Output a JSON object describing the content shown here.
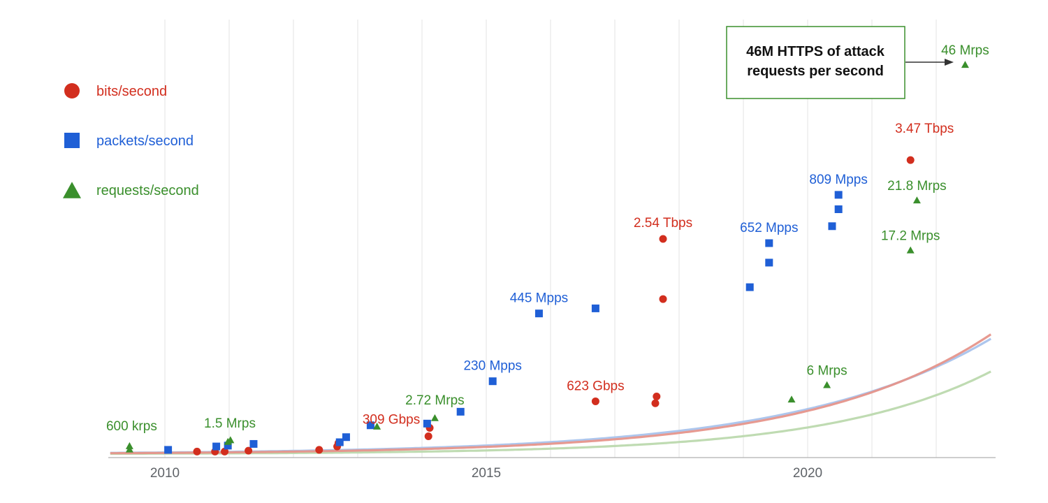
{
  "chart_data": {
    "type": "scatter",
    "title": "",
    "xlabel": "",
    "ylabel": "",
    "xlim": [
      2009.15,
      2022.85
    ],
    "ylim": [
      0,
      47
    ],
    "x_ticks": [
      2010,
      2015,
      2020
    ],
    "grid": {
      "vertical": true,
      "horizontal": false,
      "step_years": 1
    },
    "legend": {
      "position": "top-left",
      "entries": [
        {
          "name": "bits/second",
          "marker": "circle",
          "color": "#d22e1e"
        },
        {
          "name": "packets/second",
          "marker": "square",
          "color": "#1f5fd6"
        },
        {
          "name": "requests/second",
          "marker": "triangle",
          "color": "#3a8f2c"
        }
      ]
    },
    "series": [
      {
        "name": "bits/second",
        "marker": "circle",
        "color": "#d22e1e",
        "trend_color": "#e6958b",
        "trend": {
          "a": 0.1,
          "b": 0.3575
        },
        "points": [
          {
            "x": 2010.5,
            "y": 0.3
          },
          {
            "x": 2010.78,
            "y": 0.3
          },
          {
            "x": 2010.93,
            "y": 0.3
          },
          {
            "x": 2011.3,
            "y": 0.4
          },
          {
            "x": 2012.4,
            "y": 0.5
          },
          {
            "x": 2012.68,
            "y": 0.9
          },
          {
            "x": 2012.7,
            "y": 1.3
          },
          {
            "x": 2014.1,
            "y": 2.1
          },
          {
            "x": 2014.12,
            "y": 3.09
          },
          {
            "x": 2016.7,
            "y": 6.23
          },
          {
            "x": 2017.63,
            "y": 6.0
          },
          {
            "x": 2017.65,
            "y": 6.8
          },
          {
            "x": 2017.75,
            "y": 18.3
          },
          {
            "x": 2017.75,
            "y": 25.4
          },
          {
            "x": 2021.6,
            "y": 34.7
          }
        ]
      },
      {
        "name": "packets/second",
        "marker": "square",
        "color": "#1f5fd6",
        "trend_color": "#a9c3ec",
        "trend": {
          "a": 0.14,
          "b": 0.3305
        },
        "points": [
          {
            "x": 2010.05,
            "y": 0.5
          },
          {
            "x": 2010.8,
            "y": 0.9
          },
          {
            "x": 2010.98,
            "y": 1.0
          },
          {
            "x": 2011.38,
            "y": 1.2
          },
          {
            "x": 2012.72,
            "y": 1.4
          },
          {
            "x": 2012.82,
            "y": 2.0
          },
          {
            "x": 2013.2,
            "y": 3.4
          },
          {
            "x": 2014.08,
            "y": 3.6
          },
          {
            "x": 2014.6,
            "y": 5.0
          },
          {
            "x": 2015.1,
            "y": 8.6
          },
          {
            "x": 2015.82,
            "y": 16.6
          },
          {
            "x": 2016.7,
            "y": 17.2
          },
          {
            "x": 2019.1,
            "y": 19.7
          },
          {
            "x": 2019.4,
            "y": 22.6
          },
          {
            "x": 2019.4,
            "y": 24.9
          },
          {
            "x": 2020.38,
            "y": 26.9
          },
          {
            "x": 2020.48,
            "y": 28.9
          },
          {
            "x": 2020.48,
            "y": 30.6
          }
        ]
      },
      {
        "name": "requests/second",
        "marker": "triangle",
        "color": "#3a8f2c",
        "trend_color": "#bcd9ae",
        "trend": {
          "a": 0.04,
          "b": 0.3968
        },
        "points": [
          {
            "x": 2009.45,
            "y": 0.6
          },
          {
            "x": 2009.45,
            "y": 1.0
          },
          {
            "x": 2010.98,
            "y": 1.5
          },
          {
            "x": 2011.02,
            "y": 1.7
          },
          {
            "x": 2013.3,
            "y": 3.3
          },
          {
            "x": 2014.2,
            "y": 4.3
          },
          {
            "x": 2019.75,
            "y": 6.5
          },
          {
            "x": 2020.3,
            "y": 8.2
          },
          {
            "x": 2021.6,
            "y": 24.1
          },
          {
            "x": 2021.7,
            "y": 30.0
          },
          {
            "x": 2022.45,
            "y": 46.0
          }
        ]
      }
    ],
    "annotations": [
      {
        "text": "600 krps",
        "series": "requests/second",
        "x": 2009.45,
        "y": 1.0
      },
      {
        "text": "1.5 Mrps",
        "series": "requests/second",
        "x": 2011.0,
        "y": 1.5
      },
      {
        "text": "309 Gbps",
        "series": "bits/second",
        "x": 2014.12,
        "y": 3.09
      },
      {
        "text": "2.72 Mrps",
        "series": "requests/second",
        "x": 2014.2,
        "y": 4.3
      },
      {
        "text": "230 Mpps",
        "series": "packets/second",
        "x": 2015.1,
        "y": 8.6
      },
      {
        "text": "445 Mpps",
        "series": "packets/second",
        "x": 2015.82,
        "y": 16.6
      },
      {
        "text": "623 Gbps",
        "series": "bits/second",
        "x": 2016.7,
        "y": 6.23
      },
      {
        "text": "2.54 Tbps",
        "series": "bits/second",
        "x": 2017.75,
        "y": 25.4
      },
      {
        "text": "652 Mpps",
        "series": "packets/second",
        "x": 2019.4,
        "y": 24.9
      },
      {
        "text": "809 Mpps",
        "series": "packets/second",
        "x": 2020.48,
        "y": 30.6
      },
      {
        "text": "6 Mrps",
        "series": "requests/second",
        "x": 2020.3,
        "y": 8.2
      },
      {
        "text": "3.47 Tbps",
        "series": "bits/second",
        "x": 2021.6,
        "y": 34.7
      },
      {
        "text": "21.8 Mrps",
        "series": "requests/second",
        "x": 2021.7,
        "y": 30.0
      },
      {
        "text": "17.2 Mrps",
        "series": "requests/second",
        "x": 2021.6,
        "y": 24.1
      },
      {
        "text": "46 Mrps",
        "series": "requests/second",
        "x": 2022.45,
        "y": 46.0
      }
    ],
    "callout": {
      "lines": [
        "46M HTTPS of attack",
        "requests per second"
      ],
      "border_color": "#3a8f2c",
      "points_to": "46 Mrps"
    }
  }
}
